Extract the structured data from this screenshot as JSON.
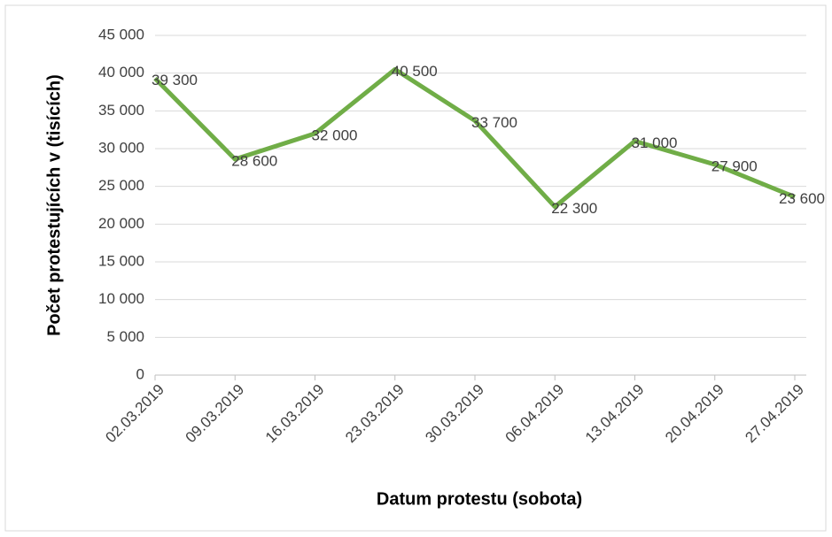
{
  "chart_data": {
    "type": "line",
    "x_label": "Datum protestu (sobota)",
    "y_label": "Počet protestujících v (tisících)",
    "categories": [
      "02.03.2019",
      "09.03.2019",
      "16.03.2019",
      "23.03.2019",
      "30.03.2019",
      "06.04.2019",
      "13.04.2019",
      "20.04.2019",
      "27.04.2019"
    ],
    "series": [
      {
        "name": "Počet protestujících",
        "color": "#70ad47",
        "values": [
          39300,
          28600,
          32000,
          40500,
          33700,
          22300,
          31000,
          27900,
          23600
        ],
        "value_labels": [
          "39 300",
          "28 600",
          "32 000",
          "40 500",
          "33 700",
          "22 300",
          "31 000",
          "27 900",
          "23 600"
        ]
      }
    ],
    "ylim": [
      0,
      45000
    ],
    "yticks": [
      0,
      {
        "value": 5000,
        "label": "5 000"
      },
      {
        "value": 10000,
        "label": "10 000"
      },
      {
        "value": 15000,
        "label": "15 000"
      },
      {
        "value": 20000,
        "label": "20 000"
      },
      {
        "value": 25000,
        "label": "25 000"
      },
      {
        "value": 30000,
        "label": "30 000"
      },
      {
        "value": 35000,
        "label": "35 000"
      },
      {
        "value": 40000,
        "label": "40 000"
      },
      {
        "value": 45000,
        "label": "45 000"
      }
    ],
    "grid": true
  }
}
